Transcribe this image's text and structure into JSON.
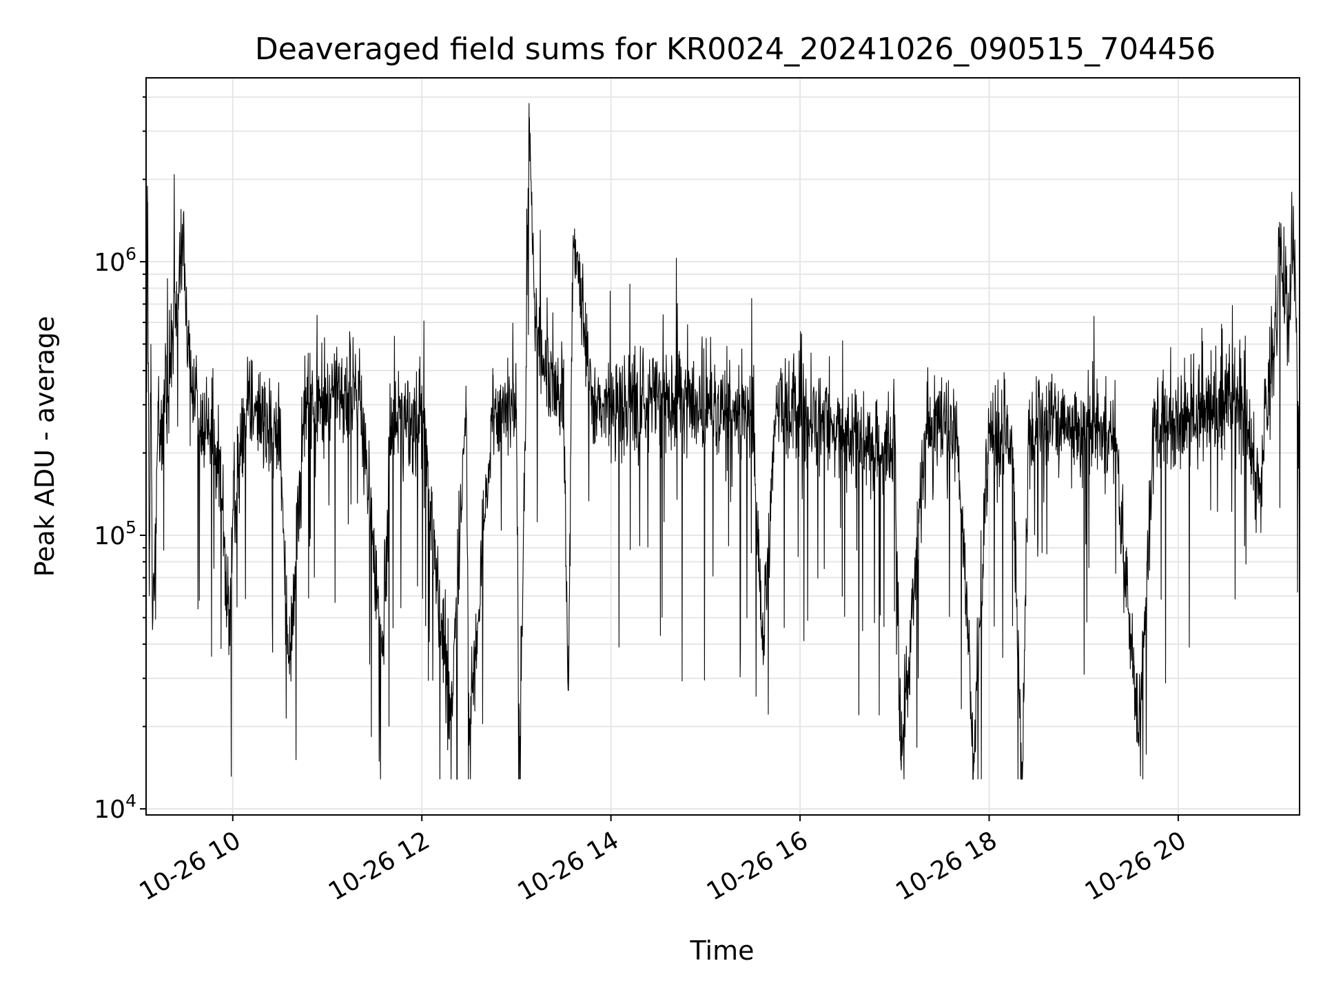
{
  "chart_data": {
    "type": "line",
    "title": "Deaveraged field sums for KR0024_20241026_090515_704456",
    "xlabel": "Time",
    "ylabel": "Peak ADU - average",
    "yscale": "log",
    "xlim": [
      "10-26 09:05",
      "10-26 21:17"
    ],
    "ylim": [
      9500,
      4700000
    ],
    "grid": true,
    "line_color": "#000000",
    "grid_color": "#e6e6e6",
    "x_ticks": [
      {
        "value": "10-26 10:00",
        "label": "10-26 10"
      },
      {
        "value": "10-26 12:00",
        "label": "10-26 12"
      },
      {
        "value": "10-26 14:00",
        "label": "10-26 14"
      },
      {
        "value": "10-26 16:00",
        "label": "10-26 16"
      },
      {
        "value": "10-26 18:00",
        "label": "10-26 18"
      },
      {
        "value": "10-26 20:00",
        "label": "10-26 20"
      }
    ],
    "y_ticks": [
      {
        "value": 10000,
        "base": "10",
        "exp": "4"
      },
      {
        "value": 100000,
        "base": "10",
        "exp": "5"
      },
      {
        "value": 1000000,
        "base": "10",
        "exp": "6"
      }
    ],
    "series": [
      {
        "x": [
          "10-26 09:05",
          "10-26 09:06",
          "10-26 09:07",
          "10-26 09:08",
          "10-26 09:09",
          "10-26 09:12",
          "10-26 09:18",
          "10-26 09:24",
          "10-26 09:28",
          "10-26 09:33",
          "10-26 09:40",
          "10-26 09:52",
          "10-26 09:58",
          "10-26 10:00",
          "10-26 10:10",
          "10-26 10:20",
          "10-26 10:30",
          "10-26 10:36",
          "10-26 10:45",
          "10-26 11:00",
          "10-26 11:20",
          "10-26 11:35",
          "10-26 11:40",
          "10-26 12:00",
          "10-26 12:18",
          "10-26 12:28",
          "10-26 12:30",
          "10-26 12:45",
          "10-26 13:00",
          "10-26 13:02",
          "10-26 13:06",
          "10-26 13:08",
          "10-26 13:12",
          "10-26 13:30",
          "10-26 13:33",
          "10-26 13:36",
          "10-26 13:50",
          "10-26 14:10",
          "10-26 14:30",
          "10-26 15:00",
          "10-26 15:30",
          "10-26 15:36",
          "10-26 15:45",
          "10-26 16:00",
          "10-26 16:15",
          "10-26 16:30",
          "10-26 16:45",
          "10-26 17:00",
          "10-26 17:04",
          "10-26 17:20",
          "10-26 17:40",
          "10-26 17:50",
          "10-26 18:00",
          "10-26 18:15",
          "10-26 18:21",
          "10-26 18:25",
          "10-26 18:40",
          "10-26 19:00",
          "10-26 19:20",
          "10-26 19:35",
          "10-26 19:45",
          "10-26 20:00",
          "10-26 20:20",
          "10-26 20:30",
          "10-26 20:40",
          "10-26 20:52",
          "10-26 20:55",
          "10-26 21:00",
          "10-26 21:05",
          "10-26 21:10",
          "10-26 21:13",
          "10-26 21:15",
          "10-26 21:17"
        ],
        "y": [
          280000,
          1450000,
          60000,
          500000,
          47000,
          200000,
          320000,
          700000,
          1200000,
          350000,
          250000,
          180000,
          40000,
          120000,
          300000,
          250000,
          220000,
          31000,
          280000,
          300000,
          400000,
          36000,
          250000,
          280000,
          21000,
          300000,
          17500,
          280000,
          290000,
          13000,
          320000,
          3800000,
          600000,
          280000,
          27000,
          1250000,
          280000,
          310000,
          330000,
          290000,
          280000,
          38000,
          290000,
          270000,
          250000,
          230000,
          210000,
          220000,
          14500,
          250000,
          230000,
          16000,
          240000,
          210000,
          13000,
          230000,
          260000,
          240000,
          230000,
          17500,
          250000,
          260000,
          280000,
          300000,
          330000,
          140000,
          290000,
          450000,
          1100000,
          500000,
          1600000,
          550000,
          150000
        ]
      }
    ]
  }
}
